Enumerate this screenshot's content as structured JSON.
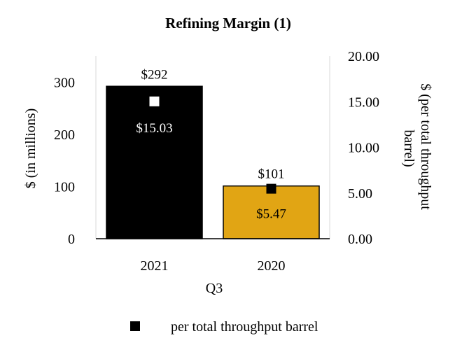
{
  "chart_data": {
    "type": "bar",
    "title": "Refining Margin (1)",
    "xlabel": "Q3",
    "ylabel": "$ (in millions)",
    "y2label": "$ (per total throughput barrel)",
    "y2label_lines": [
      "$ (per total throughput",
      "barrel)"
    ],
    "categories": [
      "2021",
      "2020"
    ],
    "ylim": [
      0,
      350
    ],
    "y_ticks": [
      0,
      100,
      200,
      300
    ],
    "y_tick_labels": [
      "0",
      "100",
      "200",
      "300"
    ],
    "y2lim": [
      0,
      20
    ],
    "y2_ticks": [
      0,
      5,
      10,
      15,
      20
    ],
    "y2_tick_labels": [
      "0.00",
      "5.00",
      "10.00",
      "15.00",
      "20.00"
    ],
    "grid": false,
    "legend_position": "bottom",
    "series": [
      {
        "type": "bar",
        "axis": "left",
        "values": [
          292,
          101
        ],
        "labels": [
          "$292",
          "$101"
        ],
        "colors": [
          "#000000",
          "#E1A514"
        ]
      },
      {
        "type": "scatter",
        "axis": "right",
        "name": "per total throughput barrel",
        "values": [
          15.03,
          5.47
        ],
        "labels": [
          "$15.03",
          "$5.47"
        ],
        "marker_colors": [
          "#ffffff",
          "#000000"
        ],
        "legend_color": "#000000"
      }
    ]
  }
}
